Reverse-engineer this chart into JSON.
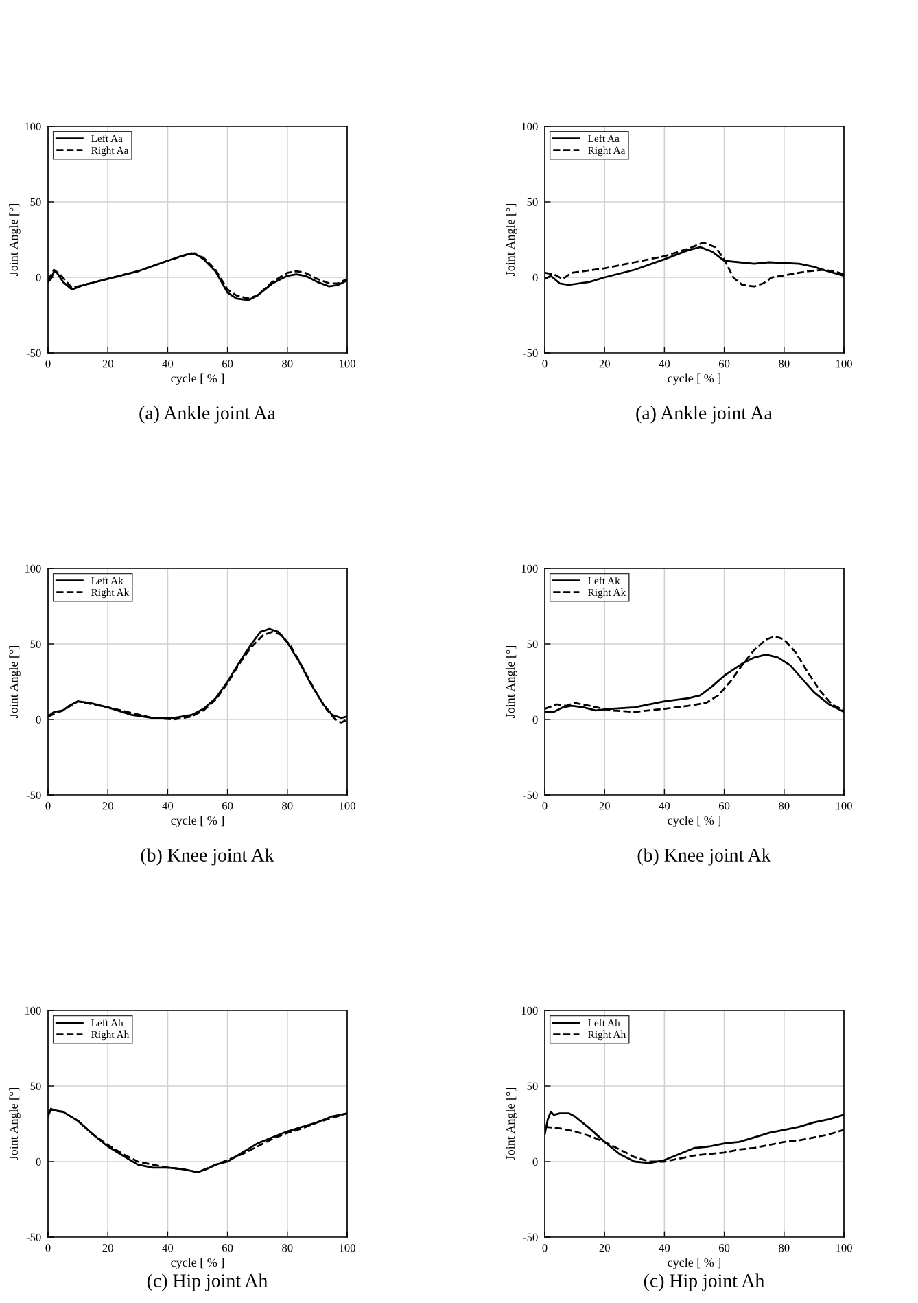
{
  "chart_data": [
    {
      "type": "line",
      "xlabel": "cycle [ % ]",
      "ylabel": "Joint Angle [°]",
      "xlim": [
        0,
        100
      ],
      "ylim": [
        -50,
        100
      ],
      "xticks": [
        0,
        20,
        40,
        60,
        80,
        100
      ],
      "yticks": [
        -50,
        0,
        50,
        100
      ],
      "grid": true,
      "legend": "top left",
      "annotations": [
        "(a) Ankle joint Aa"
      ],
      "series": [
        {
          "name": "Left Aa",
          "color": "#000000",
          "line_style": "solid",
          "x": [
            0,
            1,
            2,
            3,
            5,
            8,
            12,
            20,
            30,
            40,
            46,
            49,
            52,
            56,
            60,
            63,
            67,
            70,
            75,
            80,
            83,
            86,
            90,
            94,
            97,
            100
          ],
          "values": [
            -3,
            -1,
            4,
            3,
            -3,
            -8,
            -5,
            -1,
            4,
            11,
            15,
            16,
            12,
            4,
            -10,
            -14,
            -15,
            -12,
            -4,
            1,
            2,
            1,
            -3,
            -6,
            -5,
            -2
          ]
        },
        {
          "name": "Right Aa",
          "color": "#000000",
          "line_style": "dashed",
          "x": [
            0,
            2,
            4,
            8,
            20,
            30,
            40,
            48,
            52,
            56,
            60,
            63,
            67,
            70,
            75,
            80,
            83,
            86,
            90,
            94,
            97,
            100
          ],
          "values": [
            -2,
            5,
            2,
            -7,
            -1,
            4,
            11,
            16,
            13,
            5,
            -8,
            -12,
            -14,
            -12,
            -3,
            3,
            4,
            3,
            -1,
            -4,
            -4,
            -1
          ]
        }
      ]
    },
    {
      "type": "line",
      "xlabel": "cycle [ % ]",
      "ylabel": "Joint Angle [°]",
      "xlim": [
        0,
        100
      ],
      "ylim": [
        -50,
        100
      ],
      "xticks": [
        0,
        20,
        40,
        60,
        80,
        100
      ],
      "yticks": [
        -50,
        0,
        50,
        100
      ],
      "grid": true,
      "legend": "top left",
      "annotations": [
        "(a) Ankle joint Aa"
      ],
      "series": [
        {
          "name": "Left Aa",
          "color": "#000000",
          "line_style": "solid",
          "x": [
            0,
            2,
            5,
            8,
            15,
            20,
            30,
            40,
            48,
            52,
            56,
            60,
            65,
            70,
            75,
            85,
            90,
            93,
            100
          ],
          "values": [
            -1,
            1,
            -4,
            -5,
            -3,
            0,
            5,
            12,
            18,
            20,
            17,
            11,
            10,
            9,
            10,
            9,
            7,
            5,
            1
          ]
        },
        {
          "name": "Right Aa",
          "color": "#000000",
          "line_style": "dashed",
          "x": [
            0,
            3,
            6,
            9,
            20,
            30,
            40,
            48,
            53,
            57,
            60,
            63,
            66,
            70,
            73,
            76,
            82,
            88,
            93,
            97,
            100
          ],
          "values": [
            3,
            2,
            -1,
            3,
            6,
            10,
            14,
            19,
            23,
            20,
            12,
            0,
            -5,
            -6,
            -4,
            0,
            2,
            4,
            5,
            4,
            2
          ]
        }
      ]
    },
    {
      "type": "line",
      "xlabel": "cycle [ % ]",
      "ylabel": "Joint Angle [°]",
      "xlim": [
        0,
        100
      ],
      "ylim": [
        -50,
        100
      ],
      "xticks": [
        0,
        20,
        40,
        60,
        80,
        100
      ],
      "yticks": [
        -50,
        0,
        50,
        100
      ],
      "grid": true,
      "legend": "top left",
      "annotations": [
        "(b) Knee joint Ak"
      ],
      "series": [
        {
          "name": "Left Ak",
          "color": "#000000",
          "line_style": "solid",
          "x": [
            0,
            2,
            5,
            7,
            10,
            14,
            20,
            28,
            35,
            42,
            48,
            52,
            56,
            60,
            64,
            68,
            71,
            74,
            77,
            80,
            84,
            88,
            92,
            95,
            98,
            100
          ],
          "values": [
            2,
            5,
            6,
            9,
            12,
            11,
            8,
            3,
            1,
            1,
            3,
            7,
            14,
            25,
            38,
            50,
            58,
            60,
            58,
            51,
            38,
            23,
            10,
            3,
            1,
            2
          ]
        },
        {
          "name": "Right Ak",
          "color": "#000000",
          "line_style": "dashed",
          "x": [
            0,
            5,
            10,
            20,
            35,
            42,
            48,
            52,
            56,
            60,
            64,
            68,
            72,
            75,
            78,
            81,
            85,
            89,
            93,
            96,
            98,
            100
          ],
          "values": [
            2,
            6,
            12,
            8,
            1,
            0,
            2,
            6,
            13,
            24,
            37,
            48,
            56,
            58,
            56,
            49,
            35,
            20,
            7,
            0,
            -2,
            0
          ]
        }
      ]
    },
    {
      "type": "line",
      "xlabel": "cycle [ % ]",
      "ylabel": "Joint Angle [°]",
      "xlim": [
        0,
        100
      ],
      "ylim": [
        -50,
        100
      ],
      "xticks": [
        0,
        20,
        40,
        60,
        80,
        100
      ],
      "yticks": [
        -50,
        0,
        50,
        100
      ],
      "grid": true,
      "legend": "top left",
      "annotations": [
        "(b) Knee joint Ak"
      ],
      "series": [
        {
          "name": "Left Ak",
          "color": "#000000",
          "line_style": "solid",
          "x": [
            0,
            3,
            6,
            9,
            13,
            17,
            22,
            30,
            40,
            48,
            52,
            56,
            60,
            66,
            70,
            74,
            78,
            82,
            86,
            90,
            95,
            100
          ],
          "values": [
            5,
            5,
            8,
            9,
            8,
            6,
            7,
            8,
            12,
            14,
            16,
            22,
            29,
            37,
            41,
            43,
            41,
            36,
            27,
            18,
            10,
            5
          ]
        },
        {
          "name": "Right Ak",
          "color": "#000000",
          "line_style": "dashed",
          "x": [
            0,
            4,
            7,
            10,
            15,
            22,
            30,
            40,
            48,
            54,
            58,
            62,
            66,
            70,
            74,
            77,
            80,
            84,
            88,
            92,
            96,
            100
          ],
          "values": [
            7,
            10,
            9,
            11,
            9,
            6,
            5,
            7,
            9,
            11,
            16,
            25,
            36,
            46,
            53,
            55,
            53,
            44,
            31,
            19,
            10,
            6
          ]
        }
      ]
    },
    {
      "type": "line",
      "xlabel": "cycle [ % ]",
      "ylabel": "Joint Angle [°]",
      "xlim": [
        0,
        100
      ],
      "ylim": [
        -50,
        100
      ],
      "xticks": [
        0,
        20,
        40,
        60,
        80,
        100
      ],
      "yticks": [
        -50,
        0,
        50,
        100
      ],
      "grid": true,
      "legend": "top left",
      "annotations": [
        "(c) Hip joint Ah"
      ],
      "series": [
        {
          "name": "Left Ah",
          "color": "#000000",
          "line_style": "solid",
          "x": [
            0,
            1,
            2,
            5,
            10,
            15,
            20,
            25,
            30,
            35,
            40,
            45,
            50,
            53,
            56,
            60,
            65,
            70,
            75,
            80,
            85,
            90,
            95,
            100
          ],
          "values": [
            30,
            35,
            34,
            33,
            27,
            18,
            10,
            4,
            -2,
            -4,
            -4,
            -5,
            -7,
            -5,
            -2,
            0,
            6,
            12,
            16,
            20,
            23,
            26,
            30,
            32
          ]
        },
        {
          "name": "Right Ah",
          "color": "#000000",
          "line_style": "dashed",
          "x": [
            0,
            1,
            5,
            10,
            15,
            20,
            25,
            30,
            35,
            40,
            45,
            50,
            55,
            60,
            65,
            70,
            75,
            80,
            85,
            90,
            95,
            100
          ],
          "values": [
            32,
            34,
            33,
            27,
            18,
            11,
            5,
            0,
            -2,
            -4,
            -5,
            -7,
            -3,
            1,
            5,
            10,
            15,
            19,
            22,
            26,
            29,
            32
          ]
        }
      ]
    },
    {
      "type": "line",
      "xlabel": "cycle [ % ]",
      "ylabel": "Joint Angle [°]",
      "xlim": [
        0,
        100
      ],
      "ylim": [
        -50,
        100
      ],
      "xticks": [
        0,
        20,
        40,
        60,
        80,
        100
      ],
      "yticks": [
        -50,
        0,
        50,
        100
      ],
      "grid": true,
      "legend": "top left",
      "annotations": [
        "(c) Hip joint Ah"
      ],
      "series": [
        {
          "name": "Left Ah",
          "color": "#000000",
          "line_style": "solid",
          "x": [
            0,
            1,
            2,
            3,
            5,
            8,
            10,
            15,
            20,
            25,
            30,
            35,
            40,
            45,
            50,
            55,
            60,
            65,
            70,
            75,
            80,
            85,
            90,
            95,
            100
          ],
          "values": [
            18,
            28,
            33,
            31,
            32,
            32,
            30,
            22,
            13,
            5,
            0,
            -1,
            1,
            5,
            9,
            10,
            12,
            13,
            16,
            19,
            21,
            23,
            26,
            28,
            31
          ]
        },
        {
          "name": "Right Ah",
          "color": "#000000",
          "line_style": "dashed",
          "x": [
            0,
            5,
            10,
            15,
            20,
            25,
            30,
            35,
            40,
            45,
            50,
            55,
            60,
            65,
            70,
            75,
            80,
            85,
            90,
            95,
            100
          ],
          "values": [
            23,
            22,
            20,
            17,
            13,
            8,
            3,
            0,
            0,
            2,
            4,
            5,
            6,
            8,
            9,
            11,
            13,
            14,
            16,
            18,
            21
          ]
        }
      ]
    }
  ]
}
